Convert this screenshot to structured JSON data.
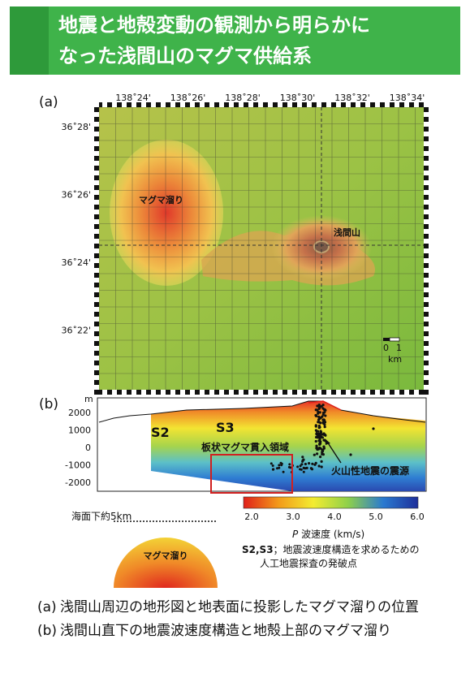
{
  "header": {
    "title": "地震と地殻変動の観測から明らかに\nなった浅間山のマグマ供給系"
  },
  "map": {
    "label": "(a)",
    "lon_ticks": [
      "138˚24'",
      "138˚26'",
      "138˚28'",
      "138˚30'",
      "138˚32'",
      "138˚34'"
    ],
    "lat_ticks": [
      "36˚28'",
      "36˚26'",
      "36˚24'",
      "36˚22'"
    ],
    "magma_label": "マグマ溜り",
    "volcano_label": "浅間山",
    "scale": {
      "zero": "0",
      "one": "1",
      "unit": "km"
    }
  },
  "section": {
    "label": "(b)",
    "y_unit": "m",
    "y_ticks": [
      "2000",
      "1000",
      "0",
      "-1000",
      "-2000"
    ],
    "s2": "S2",
    "s3": "S3",
    "intrusion_label": "板状マグマ貫入領域",
    "quake_label": "火山性地震の震源"
  },
  "colorbar": {
    "ticks": [
      "2.0",
      "3.0",
      "4.0",
      "5.0",
      "6.0"
    ],
    "label_p": "P",
    "label_rest": " 波速度 (km/s)",
    "colors": [
      "#e0201a",
      "#f39a1a",
      "#f3ec30",
      "#8ed04a",
      "#2a7ad0",
      "#1e2f9a"
    ]
  },
  "schematic": {
    "sea_level": "海面下約5km",
    "magma_label": "マグマ溜り"
  },
  "notes": {
    "bold": "S2,S3",
    "line1": "；地震波速度構造を求めるための",
    "line2": "人工地震探査の発破点"
  },
  "caption": [
    {
      "tag": "(a)",
      "text": "浅間山周辺の地形図と地表面に投影したマグマ溜りの位置"
    },
    {
      "tag": "(b)",
      "text": "浅間山直下の地震波速度構造と地殻上部のマグマ溜り"
    }
  ]
}
